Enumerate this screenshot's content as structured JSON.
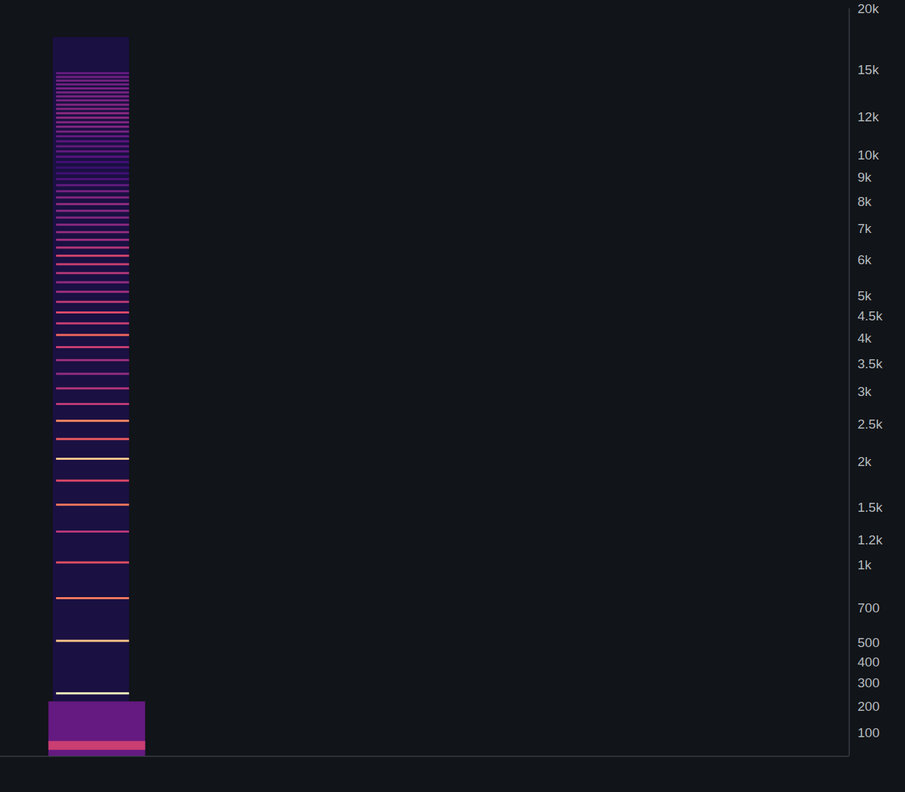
{
  "chart_data": {
    "type": "spectrogram",
    "xlim": [
      0,
      10
    ],
    "ylim": [
      20,
      20000
    ],
    "yticks": [
      100,
      200,
      300,
      400,
      500,
      700,
      {
        "value": 1000,
        "label": "1k"
      },
      {
        "value": 1200,
        "label": "1.2k"
      },
      {
        "value": 1500,
        "label": "1.5k"
      },
      {
        "value": 2000,
        "label": "2k"
      },
      {
        "value": 2500,
        "label": "2.5k"
      },
      {
        "value": 3000,
        "label": "3k"
      },
      {
        "value": 3500,
        "label": "3.5k"
      },
      {
        "value": 4000,
        "label": "4k"
      },
      {
        "value": 4500,
        "label": "4.5k"
      },
      {
        "value": 5000,
        "label": "5k"
      },
      {
        "value": 6000,
        "label": "6k"
      },
      {
        "value": 7000,
        "label": "7k"
      },
      {
        "value": 8000,
        "label": "8k"
      },
      {
        "value": 9000,
        "label": "9k"
      },
      {
        "value": 10000,
        "label": "10k"
      },
      {
        "value": 12000,
        "label": "12k"
      },
      {
        "value": 15000,
        "label": "15k"
      },
      {
        "value": 20000,
        "label": "20k"
      }
    ],
    "tick_labels": "y",
    "color": "magma",
    "intensity_range": [
      0,
      1
    ],
    "regions": [
      {
        "low": 220,
        "high": 17500,
        "start": 0.62,
        "end": 1.52,
        "intensity": 0.12
      },
      {
        "low": 20,
        "high": 220,
        "start": 0.57,
        "end": 1.71,
        "intensity": 0.3
      },
      {
        "low": 40,
        "high": 70,
        "start": 0.57,
        "end": 1.71,
        "intensity": 0.55
      }
    ],
    "partials": {
      "start": 0.66,
      "end": 1.52,
      "frequency": [
        255,
        510,
        765,
        1020,
        1275,
        1530,
        1785,
        2040,
        2295,
        2550,
        2805,
        3060,
        3315,
        3570,
        3825,
        4080,
        4335,
        4590,
        4845,
        5100,
        5355,
        5610,
        5865,
        6120,
        6375,
        6630,
        6885,
        7140,
        7395,
        7650,
        7905,
        8160,
        8415,
        8670,
        8925,
        9180,
        9435,
        9690,
        9945,
        10200,
        10455,
        10710,
        10965,
        11220,
        11475,
        11730,
        11985,
        12240,
        12495,
        12750,
        13005,
        13260,
        13515,
        13770,
        14025,
        14280,
        14535,
        14790
      ],
      "intensity": [
        1.0,
        0.88,
        0.72,
        0.62,
        0.5,
        0.72,
        0.6,
        0.88,
        0.66,
        0.75,
        0.52,
        0.5,
        0.42,
        0.45,
        0.55,
        0.68,
        0.55,
        0.6,
        0.52,
        0.45,
        0.42,
        0.5,
        0.55,
        0.58,
        0.5,
        0.45,
        0.42,
        0.4,
        0.38,
        0.4,
        0.42,
        0.38,
        0.35,
        0.3,
        0.25,
        0.22,
        0.2,
        0.22,
        0.28,
        0.3,
        0.3,
        0.28,
        0.3,
        0.35,
        0.38,
        0.38,
        0.4,
        0.4,
        0.38,
        0.38,
        0.36,
        0.36,
        0.35,
        0.35,
        0.34,
        0.34,
        0.33,
        0.3
      ]
    }
  }
}
